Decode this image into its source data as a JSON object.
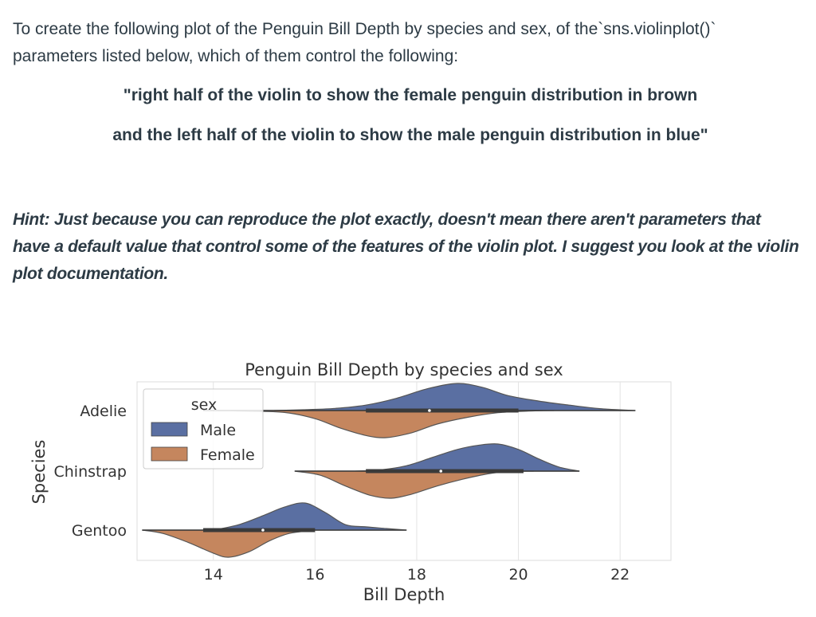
{
  "question": {
    "intro": "To create the following plot of the Penguin Bill Depth by species and sex, of the`sns.violinplot()` parameters listed below, which of them control the following:",
    "quote_line1": "\"right half of the violin to show the female penguin distribution in brown",
    "quote_line2": "and the left half of the violin to show the male penguin distribution in blue\"",
    "hint": "Hint: Just because you can reproduce the plot exactly, doesn't mean there aren't parameters that have a default value that control some of the features of the violin plot. I suggest you look at the violin plot documentation."
  },
  "chart_data": {
    "type": "violin",
    "orientation": "horizontal",
    "split": true,
    "title": "Penguin Bill Depth by species and sex",
    "xlabel": "Bill Depth",
    "ylabel": "Species",
    "xlim": [
      12.5,
      23.0
    ],
    "xticks": [
      14,
      16,
      18,
      20,
      22
    ],
    "xtick_labels": [
      "14",
      "16",
      "18",
      "20",
      "22"
    ],
    "categories": [
      "Adelie",
      "Chinstrap",
      "Gentoo"
    ],
    "grid": "vertical",
    "legend": {
      "title": "sex",
      "placement": "top-left"
    },
    "series": [
      {
        "name": "Male",
        "color": "#5a6fa2",
        "side": "upper",
        "violins": [
          {
            "category": "Adelie",
            "range": [
              15.2,
              22.3
            ],
            "quartiles": [
              17.5,
              18.9,
              20.0
            ],
            "density": [
              [
                15.2,
                0.0
              ],
              [
                15.8,
                0.03
              ],
              [
                16.4,
                0.08
              ],
              [
                17.0,
                0.2
              ],
              [
                17.6,
                0.45
              ],
              [
                18.2,
                0.8
              ],
              [
                18.8,
                1.0
              ],
              [
                19.3,
                0.85
              ],
              [
                19.8,
                0.55
              ],
              [
                20.4,
                0.35
              ],
              [
                21.0,
                0.2
              ],
              [
                21.6,
                0.07
              ],
              [
                22.3,
                0.0
              ]
            ]
          },
          {
            "category": "Chinstrap",
            "range": [
              16.8,
              21.2
            ],
            "quartiles": [
              18.3,
              19.3,
              20.1
            ],
            "density": [
              [
                16.8,
                0.0
              ],
              [
                17.3,
                0.05
              ],
              [
                17.8,
                0.2
              ],
              [
                18.3,
                0.5
              ],
              [
                18.8,
                0.8
              ],
              [
                19.2,
                0.95
              ],
              [
                19.6,
                1.0
              ],
              [
                20.0,
                0.8
              ],
              [
                20.4,
                0.45
              ],
              [
                20.8,
                0.15
              ],
              [
                21.2,
                0.0
              ]
            ]
          },
          {
            "category": "Gentoo",
            "range": [
              14.0,
              17.8
            ],
            "quartiles": [
              14.8,
              15.7,
              16.0
            ],
            "density": [
              [
                14.0,
                0.0
              ],
              [
                14.5,
                0.2
              ],
              [
                15.0,
                0.55
              ],
              [
                15.4,
                0.85
              ],
              [
                15.8,
                1.0
              ],
              [
                16.2,
                0.65
              ],
              [
                16.6,
                0.2
              ],
              [
                17.0,
                0.12
              ],
              [
                17.4,
                0.06
              ],
              [
                17.8,
                0.0
              ]
            ]
          }
        ]
      },
      {
        "name": "Female",
        "color": "#c5865e",
        "side": "lower",
        "violins": [
          {
            "category": "Adelie",
            "range": [
              13.8,
              20.7
            ],
            "quartiles": [
              17.0,
              17.6,
              18.3
            ],
            "density": [
              [
                13.8,
                0.0
              ],
              [
                14.6,
                0.02
              ],
              [
                15.4,
                0.07
              ],
              [
                16.0,
                0.3
              ],
              [
                16.5,
                0.65
              ],
              [
                17.0,
                0.92
              ],
              [
                17.4,
                1.0
              ],
              [
                17.9,
                0.82
              ],
              [
                18.4,
                0.5
              ],
              [
                19.0,
                0.25
              ],
              [
                19.6,
                0.08
              ],
              [
                20.2,
                0.02
              ],
              [
                20.7,
                0.0
              ]
            ]
          },
          {
            "category": "Chinstrap",
            "range": [
              15.6,
              20.3
            ],
            "quartiles": [
              17.0,
              17.65,
              18.4
            ],
            "density": [
              [
                15.6,
                0.0
              ],
              [
                16.1,
                0.15
              ],
              [
                16.6,
                0.55
              ],
              [
                17.1,
                0.9
              ],
              [
                17.5,
                1.0
              ],
              [
                17.9,
                0.85
              ],
              [
                18.4,
                0.55
              ],
              [
                18.9,
                0.3
              ],
              [
                19.4,
                0.1
              ],
              [
                19.8,
                0.02
              ],
              [
                20.3,
                0.0
              ]
            ]
          },
          {
            "category": "Gentoo",
            "range": [
              12.6,
              16.0
            ],
            "quartiles": [
              13.8,
              14.25,
              14.6
            ],
            "density": [
              [
                12.6,
                0.0
              ],
              [
                13.0,
                0.12
              ],
              [
                13.5,
                0.45
              ],
              [
                14.0,
                0.85
              ],
              [
                14.3,
                1.0
              ],
              [
                14.7,
                0.8
              ],
              [
                15.1,
                0.4
              ],
              [
                15.5,
                0.12
              ],
              [
                16.0,
                0.0
              ]
            ]
          }
        ]
      }
    ]
  }
}
